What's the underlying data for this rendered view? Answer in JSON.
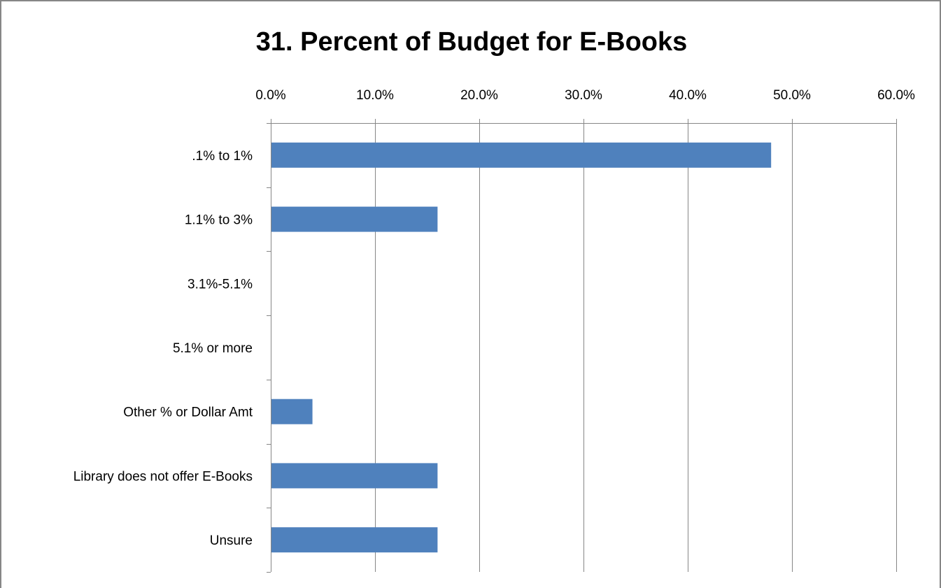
{
  "chart_data": {
    "type": "bar",
    "orientation": "horizontal",
    "title": "31. Percent of Budget for E-Books",
    "xlabel": "",
    "ylabel": "",
    "categories": [
      ".1% to 1%",
      "1.1% to 3%",
      "3.1%-5.1%",
      "5.1% or more",
      "Other % or Dollar Amt",
      "Library does not offer E-Books",
      "Unsure"
    ],
    "series": [
      {
        "values": [
          48.0,
          16.0,
          0,
          0,
          4.0,
          16.0,
          16.0
        ],
        "color": "#4f81bd"
      }
    ],
    "xlim": [
      0,
      60
    ],
    "x_ticks": [
      "0.0%",
      "10.0%",
      "20.0%",
      "30.0%",
      "40.0%",
      "50.0%",
      "60.0%"
    ],
    "value_axis_position": "top",
    "grid": true,
    "legend": "none"
  }
}
